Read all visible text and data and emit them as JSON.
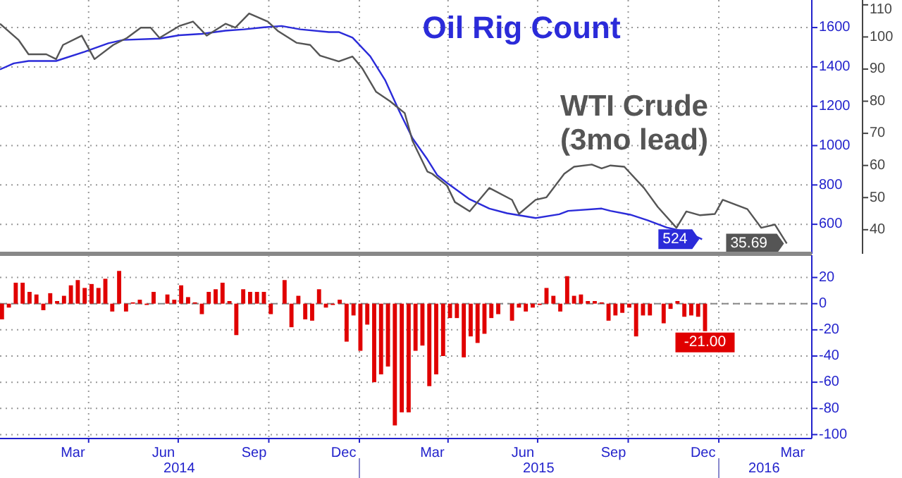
{
  "chart_data": [
    {
      "type": "line",
      "xlim": [
        "2014-01-01",
        "2016-04-03"
      ],
      "xticks": [
        {
          "value": "2014-04-01",
          "label": null
        },
        {
          "value": "2014-07-01",
          "label": null
        },
        {
          "value": "2014-10-01",
          "label": null
        },
        {
          "value": "2015-01-01",
          "label": null
        },
        {
          "value": "2015-04-01",
          "label": null
        },
        {
          "value": "2015-07-01",
          "label": null
        },
        {
          "value": "2015-10-01",
          "label": null
        },
        {
          "value": "2016-01-01",
          "label": null
        }
      ],
      "ylim": [
        450,
        1740
      ],
      "yticks": [
        600,
        800,
        1000,
        1200,
        1400,
        1600
      ],
      "y2lim": [
        32.5,
        111.5
      ],
      "y2ticks": [
        40,
        50,
        60,
        70,
        80,
        90,
        100,
        110
      ],
      "grid": true,
      "tick_labels": "y",
      "series": [
        {
          "name": "Oil Rig Count",
          "color": "#2b2bd9",
          "x": [
            "2014-01-01",
            "2014-01-15",
            "2014-01-30",
            "2014-02-27",
            "2014-03-28",
            "2014-04-21",
            "2014-05-06",
            "2014-06-12",
            "2014-07-02",
            "2014-07-25",
            "2014-08-18",
            "2014-09-06",
            "2014-09-26",
            "2014-10-14",
            "2014-11-02",
            "2014-12-01",
            "2014-12-11",
            "2014-12-25",
            "2015-01-12",
            "2015-01-27",
            "2015-02-10",
            "2015-02-24",
            "2015-03-11",
            "2015-03-21",
            "2015-03-31",
            "2015-04-23",
            "2015-05-13",
            "2015-05-31",
            "2015-06-29",
            "2015-07-23",
            "2015-08-01",
            "2015-09-04",
            "2015-09-13",
            "2015-10-03",
            "2015-10-21",
            "2015-11-09",
            "2015-11-29",
            "2015-12-15"
          ],
          "values": [
            1387,
            1418,
            1430,
            1430,
            1477,
            1520,
            1537,
            1544,
            1561,
            1568,
            1584,
            1591,
            1601,
            1608,
            1591,
            1577,
            1577,
            1549,
            1454,
            1334,
            1180,
            1037,
            930,
            850,
            810,
            727,
            680,
            656,
            632,
            651,
            668,
            680,
            668,
            649,
            620,
            584,
            561,
            524
          ],
          "value_labels": [
            null,
            null,
            null,
            null,
            null,
            null,
            null,
            null,
            null,
            null,
            null,
            null,
            null,
            null,
            null,
            null,
            null,
            null,
            null,
            null,
            null,
            null,
            null,
            null,
            null,
            null,
            null,
            null,
            null,
            null,
            null,
            null,
            null,
            null,
            null,
            null,
            null,
            "524"
          ]
        },
        {
          "name": "WTI Crude (3mo lead)",
          "color": "#555555",
          "axis": "y2",
          "x": [
            "2014-01-01",
            "2014-01-20",
            "2014-01-30",
            "2014-02-17",
            "2014-02-27",
            "2014-03-06",
            "2014-03-25",
            "2014-04-07",
            "2014-04-26",
            "2014-05-10",
            "2014-05-24",
            "2014-06-03",
            "2014-06-12",
            "2014-07-02",
            "2014-07-16",
            "2014-07-30",
            "2014-08-18",
            "2014-08-28",
            "2014-09-11",
            "2014-09-30",
            "2014-10-10",
            "2014-10-29",
            "2014-11-12",
            "2014-11-22",
            "2014-12-11",
            "2014-12-25",
            "2015-01-04",
            "2015-01-18",
            "2015-02-01",
            "2015-02-16",
            "2015-02-24",
            "2015-03-11",
            "2015-03-16",
            "2015-03-31",
            "2015-04-08",
            "2015-04-23",
            "2015-05-13",
            "2015-06-05",
            "2015-06-12",
            "2015-06-29",
            "2015-07-10",
            "2015-07-28",
            "2015-08-07",
            "2015-08-25",
            "2015-09-04",
            "2015-09-13",
            "2015-09-27",
            "2015-10-17",
            "2015-10-31",
            "2015-11-19",
            "2015-11-29",
            "2015-12-13",
            "2015-12-28",
            "2016-01-05",
            "2016-01-30",
            "2016-02-13",
            "2016-02-27",
            "2016-03-10"
          ],
          "values": [
            104.1,
            99.0,
            94.6,
            94.6,
            93.1,
            97.5,
            100.4,
            93.1,
            97.5,
            99.7,
            102.9,
            102.9,
            99.7,
            103.4,
            104.8,
            100.4,
            104.1,
            102.9,
            107.3,
            104.8,
            101.9,
            98.2,
            97.5,
            94.2,
            92.4,
            93.9,
            90.2,
            82.9,
            80.0,
            76.3,
            67.6,
            58.1,
            57.4,
            53.7,
            48.6,
            45.7,
            53.0,
            49.3,
            44.9,
            49.3,
            50.1,
            57.4,
            59.6,
            60.3,
            59.1,
            60.0,
            59.6,
            53.0,
            47.1,
            40.6,
            45.7,
            44.5,
            44.9,
            49.3,
            46.4,
            40.6,
            41.6,
            35.69
          ],
          "value_labels": [
            null,
            null,
            null,
            null,
            null,
            null,
            null,
            null,
            null,
            null,
            null,
            null,
            null,
            null,
            null,
            null,
            null,
            null,
            null,
            null,
            null,
            null,
            null,
            null,
            null,
            null,
            null,
            null,
            null,
            null,
            null,
            null,
            null,
            null,
            null,
            null,
            null,
            null,
            null,
            null,
            null,
            null,
            null,
            null,
            null,
            null,
            null,
            null,
            null,
            null,
            null,
            null,
            null,
            null,
            null,
            null,
            null,
            "35.69"
          ]
        }
      ]
    },
    {
      "type": "bar",
      "xlim": [
        "2014-01-01",
        "2016-04-03"
      ],
      "xticks": [
        {
          "value": "2014-03-16",
          "label": "Mar"
        },
        {
          "value": "2014-06-16",
          "label": "Jun"
        },
        {
          "value": "2014-09-16",
          "label": "Sep"
        },
        {
          "value": "2014-12-16",
          "label": "Dec"
        },
        {
          "value": "2015-03-16",
          "label": "Mar"
        },
        {
          "value": "2015-06-16",
          "label": "Jun"
        },
        {
          "value": "2015-09-16",
          "label": "Sep"
        },
        {
          "value": "2015-12-16",
          "label": "Dec"
        },
        {
          "value": "2016-03-16",
          "label": "Mar"
        },
        {
          "value": "2014-04-01",
          "label": null
        },
        {
          "value": "2014-07-01",
          "label": null
        },
        {
          "value": "2014-10-01",
          "label": null
        },
        {
          "value": "2015-01-01",
          "label": null
        },
        {
          "value": "2015-04-01",
          "label": null
        },
        {
          "value": "2015-07-01",
          "label": null
        },
        {
          "value": "2015-10-01",
          "label": null
        },
        {
          "value": "2016-01-01",
          "label": null
        }
      ],
      "x2lim": [
        "2014-01-01",
        "2016-04-03"
      ],
      "x2ticks": [
        {
          "value": "2014-07-02",
          "label": "2014"
        },
        {
          "value": "2015-07-02",
          "label": "2015"
        },
        {
          "value": "2016-02-16",
          "label": "2016"
        },
        {
          "value": "2015-01-01",
          "label": null
        },
        {
          "value": "2016-01-01",
          "label": null
        }
      ],
      "ylim": [
        -103,
        37
      ],
      "yticks": [
        -100,
        -80,
        -60,
        -40,
        -20,
        0,
        20
      ],
      "grid": true,
      "ref_lines": [
        {
          "axis": "y",
          "value": 0,
          "color": "#888888",
          "line_style": "dashed"
        }
      ],
      "color": "#e00000",
      "x": [
        "2014-01-03",
        "2014-01-10",
        "2014-01-17",
        "2014-01-24",
        "2014-01-31",
        "2014-02-07",
        "2014-02-14",
        "2014-02-21",
        "2014-02-28",
        "2014-03-07",
        "2014-03-14",
        "2014-03-21",
        "2014-03-28",
        "2014-04-04",
        "2014-04-11",
        "2014-04-18",
        "2014-04-25",
        "2014-05-02",
        "2014-05-09",
        "2014-05-16",
        "2014-05-23",
        "2014-05-30",
        "2014-06-06",
        "2014-06-13",
        "2014-06-20",
        "2014-06-27",
        "2014-07-04",
        "2014-07-11",
        "2014-07-18",
        "2014-07-25",
        "2014-08-01",
        "2014-08-08",
        "2014-08-15",
        "2014-08-22",
        "2014-08-29",
        "2014-09-05",
        "2014-09-12",
        "2014-09-19",
        "2014-09-26",
        "2014-10-03",
        "2014-10-10",
        "2014-10-17",
        "2014-10-24",
        "2014-10-31",
        "2014-11-07",
        "2014-11-14",
        "2014-11-21",
        "2014-11-28",
        "2014-12-05",
        "2014-12-12",
        "2014-12-19",
        "2014-12-26",
        "2015-01-02",
        "2015-01-09",
        "2015-01-16",
        "2015-01-23",
        "2015-01-30",
        "2015-02-06",
        "2015-02-13",
        "2015-02-20",
        "2015-02-27",
        "2015-03-06",
        "2015-03-13",
        "2015-03-20",
        "2015-03-27",
        "2015-04-03",
        "2015-04-10",
        "2015-04-17",
        "2015-04-24",
        "2015-05-01",
        "2015-05-08",
        "2015-05-15",
        "2015-05-22",
        "2015-05-29",
        "2015-06-05",
        "2015-06-12",
        "2015-06-19",
        "2015-06-26",
        "2015-07-03",
        "2015-07-10",
        "2015-07-17",
        "2015-07-24",
        "2015-07-31",
        "2015-08-07",
        "2015-08-14",
        "2015-08-21",
        "2015-08-28",
        "2015-09-04",
        "2015-09-11",
        "2015-09-18",
        "2015-09-25",
        "2015-10-02",
        "2015-10-09",
        "2015-10-16",
        "2015-10-23",
        "2015-10-30",
        "2015-11-06",
        "2015-11-13",
        "2015-11-20",
        "2015-11-27",
        "2015-12-04",
        "2015-12-11",
        "2015-12-18"
      ],
      "values": [
        -12,
        -3,
        16,
        16,
        9,
        7,
        -5,
        8,
        2,
        6,
        14,
        18,
        12,
        15,
        12,
        19,
        -6,
        25,
        -6,
        1,
        3,
        -1,
        9,
        0,
        7,
        3,
        14,
        5,
        1,
        -8,
        9,
        11,
        16,
        2,
        -24,
        11,
        9,
        9,
        9,
        -8,
        0,
        18,
        -18,
        6,
        -12,
        -13,
        11,
        -3,
        -1,
        3,
        -29,
        -9,
        -36,
        -16,
        -60,
        -54,
        -48,
        -93,
        -83,
        -83,
        -36,
        -32,
        -63,
        -54,
        -40,
        -11,
        -11,
        -41,
        -25,
        -30,
        -23,
        -11,
        -8,
        0,
        -13,
        -3,
        -6,
        -3,
        -1,
        12,
        6,
        -6,
        21,
        6,
        7,
        2,
        2,
        1,
        -13,
        -9,
        -7,
        -3,
        -25,
        -9,
        -9,
        0,
        -15,
        -4,
        2,
        -10,
        -9,
        -10,
        -21
      ],
      "value_labels": [
        null,
        null,
        null,
        null,
        null,
        null,
        null,
        null,
        null,
        null,
        null,
        null,
        null,
        null,
        null,
        null,
        null,
        null,
        null,
        null,
        null,
        null,
        null,
        null,
        null,
        null,
        null,
        null,
        null,
        null,
        null,
        null,
        null,
        null,
        null,
        null,
        null,
        null,
        null,
        null,
        null,
        null,
        null,
        null,
        null,
        null,
        null,
        null,
        null,
        null,
        null,
        null,
        null,
        null,
        null,
        null,
        null,
        null,
        null,
        null,
        null,
        null,
        null,
        null,
        null,
        null,
        null,
        null,
        null,
        null,
        null,
        null,
        null,
        null,
        null,
        null,
        null,
        null,
        null,
        null,
        null,
        null,
        null,
        null,
        null,
        null,
        null,
        null,
        null,
        null,
        null,
        null,
        null,
        null,
        null,
        null,
        null,
        null,
        null,
        null,
        null,
        null,
        "-21.00"
      ]
    }
  ]
}
